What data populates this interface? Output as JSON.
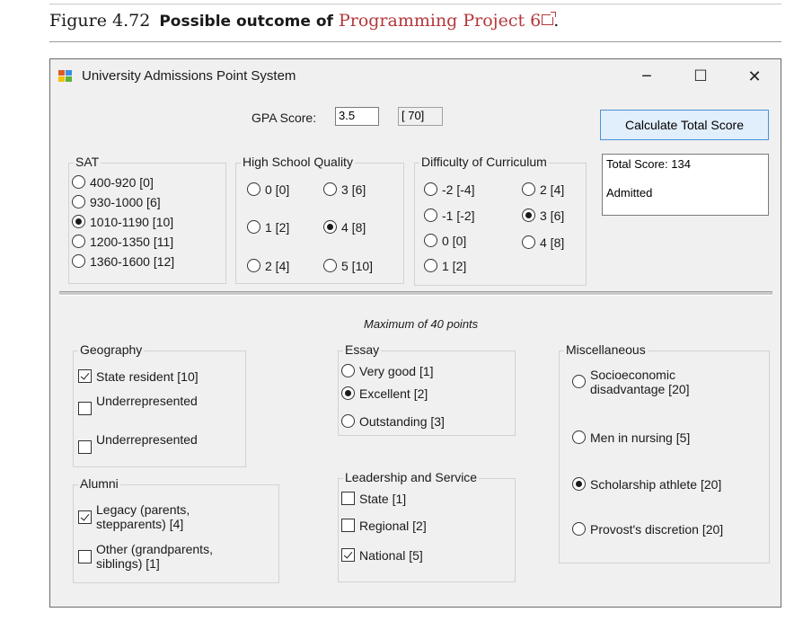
{
  "caption": {
    "figure_num": "Figure 4.72",
    "text": "Possible outcome of",
    "link": "Programming Project 6",
    "period": "."
  },
  "window": {
    "title": "University Admissions Point System",
    "minimize": "−",
    "maximize": "☐",
    "close": "✕"
  },
  "gpa": {
    "label": "GPA Score:",
    "value": "3.5",
    "points": "[ 70]"
  },
  "calculate_button": "Calculate Total Score",
  "output": {
    "total": "Total Score: 134",
    "decision": "Admitted"
  },
  "sat": {
    "title": "SAT",
    "options": [
      "400-920 [0]",
      "930-1000 [6]",
      "1010-1190 [10]",
      "1200-1350 [11]",
      "1360-1600 [12]"
    ],
    "selected": 2
  },
  "high_school": {
    "title": "High School Quality",
    "options": [
      "0 [0]",
      "3 [6]",
      "1 [2]",
      "4 [8]",
      "2 [4]",
      "5 [10]"
    ],
    "selected": 3
  },
  "curriculum": {
    "title": "Difficulty of Curriculum",
    "options": [
      "-2 [-4]",
      "2 [4]",
      "-1 [-2]",
      "3 [6]",
      "0 [0]",
      "4 [8]",
      "1 [2]"
    ],
    "selected": 3
  },
  "max_note": "Maximum of 40 points",
  "geography": {
    "title": "Geography",
    "options": [
      "State resident [10]",
      "Underrepresented",
      "Underrepresented"
    ],
    "checked": [
      true,
      false,
      false
    ]
  },
  "essay": {
    "title": "Essay",
    "options": [
      "Very good [1]",
      "Excellent [2]",
      "Outstanding [3]"
    ],
    "selected": 1
  },
  "misc": {
    "title": "Miscellaneous",
    "options": [
      "Socioeconomic\ndisadvantage [20]",
      "Men in nursing [5]",
      "Scholarship athlete [20]",
      "Provost's discretion [20]"
    ],
    "selected": 2
  },
  "alumni": {
    "title": "Alumni",
    "options": [
      "Legacy (parents,\nstepparents) [4]",
      "Other (grandparents,\nsiblings) [1]"
    ],
    "checked": [
      true,
      false
    ]
  },
  "leadership": {
    "title": "Leadership and Service",
    "options": [
      "State [1]",
      "Regional [2]",
      "National [5]"
    ],
    "checked": [
      false,
      false,
      true
    ]
  }
}
